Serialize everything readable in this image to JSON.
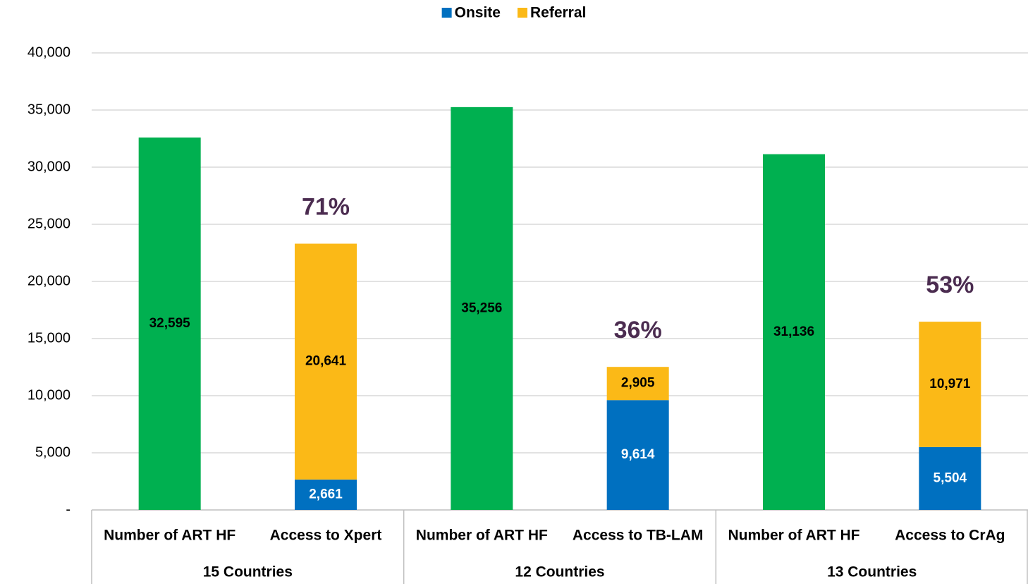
{
  "chart_data": {
    "type": "stacked_bar",
    "categories": [
      "Number of ART HF",
      "Access to Xpert",
      "Number of ART HF",
      "Access to TB-LAM",
      "Number of ART HF",
      "Access to CrAg"
    ],
    "groups": [
      "15 Countries",
      "12 Countries",
      "13 Countries"
    ],
    "series": [
      {
        "color": "#00b050",
        "label_color": "#000000",
        "values": [
          32595,
          null,
          35256,
          null,
          31136,
          null
        ],
        "value_labels": [
          "32,595",
          null,
          "35,256",
          null,
          "31,136",
          null
        ]
      },
      {
        "name": "Onsite",
        "color": "#0070c0",
        "label_color": "#ffffff",
        "values": [
          null,
          2661,
          null,
          9614,
          null,
          5504
        ],
        "value_labels": [
          null,
          "2,661",
          null,
          "9,614",
          null,
          "5,504"
        ]
      },
      {
        "name": "Referral",
        "color": "#fbb917",
        "label_color": "#000000",
        "values": [
          null,
          20641,
          null,
          2905,
          null,
          10971
        ],
        "value_labels": [
          null,
          "20,641",
          null,
          "2,905",
          null,
          "10,971"
        ]
      }
    ],
    "percent_labels": [
      null,
      "71%",
      null,
      "36%",
      null,
      "53%"
    ],
    "percent_color": "#4b2c50",
    "ylim": [
      0,
      40000
    ],
    "yticks": [
      {
        "value": 0,
        "label": "-"
      },
      {
        "value": 5000,
        "label": "5,000"
      },
      {
        "value": 10000,
        "label": "10,000"
      },
      {
        "value": 15000,
        "label": "15,000"
      },
      {
        "value": 20000,
        "label": "20,000"
      },
      {
        "value": 25000,
        "label": "25,000"
      },
      {
        "value": 30000,
        "label": "30,000"
      },
      {
        "value": 35000,
        "label": "35,000"
      },
      {
        "value": 40000,
        "label": "40,000"
      }
    ],
    "grid": true,
    "legend": "top"
  }
}
